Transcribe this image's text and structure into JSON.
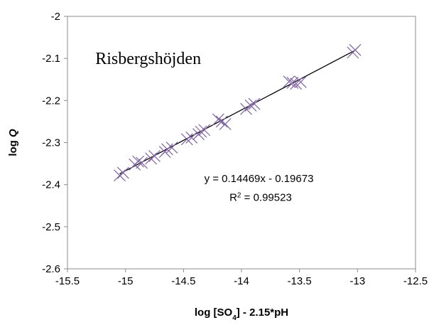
{
  "chart_data": {
    "type": "scatter",
    "title": "",
    "annotation_title": "Risbergshöjden",
    "xlabel": {
      "main": "log [SO",
      "subscript": "4",
      "rest": "] - 2.15*pH"
    },
    "ylabel": {
      "main": "log ",
      "italic": "Q"
    },
    "xlim": [
      -15.5,
      -12.5
    ],
    "ylim": [
      -2.6,
      -2.0
    ],
    "xticks": [
      -15.5,
      -15,
      -14.5,
      -14,
      -13.5,
      -13,
      -12.5
    ],
    "yticks": [
      -2.6,
      -2.5,
      -2.4,
      -2.3,
      -2.2,
      -2.1,
      -2.0
    ],
    "xtick_labels": [
      "-15.5",
      "-15",
      "-14.5",
      "-14",
      "-13.5",
      "-13",
      "-12.5"
    ],
    "ytick_labels": [
      "-2.6",
      "-2.5",
      "-2.4",
      "-2.3",
      "-2.2",
      "-2.1",
      "-2"
    ],
    "grid": false,
    "marker": "x",
    "marker_color": "#8064a2",
    "trendline_color": "#000000",
    "series": [
      {
        "points": [
          [
            -15.05,
            -2.378
          ],
          [
            -15.02,
            -2.372
          ],
          [
            -14.92,
            -2.352
          ],
          [
            -14.89,
            -2.345
          ],
          [
            -14.86,
            -2.348
          ],
          [
            -14.78,
            -2.338
          ],
          [
            -14.75,
            -2.332
          ],
          [
            -14.66,
            -2.322
          ],
          [
            -14.64,
            -2.316
          ],
          [
            -14.6,
            -2.312
          ],
          [
            -14.47,
            -2.292
          ],
          [
            -14.43,
            -2.288
          ],
          [
            -14.37,
            -2.28
          ],
          [
            -14.35,
            -2.274
          ],
          [
            -14.32,
            -2.27
          ],
          [
            -14.2,
            -2.245
          ],
          [
            -14.17,
            -2.25
          ],
          [
            -14.14,
            -2.256
          ],
          [
            -13.96,
            -2.22
          ],
          [
            -13.92,
            -2.212
          ],
          [
            -13.89,
            -2.208
          ],
          [
            -13.59,
            -2.155
          ],
          [
            -13.56,
            -2.158
          ],
          [
            -13.53,
            -2.16
          ],
          [
            -13.49,
            -2.156
          ],
          [
            -13.04,
            -2.086
          ],
          [
            -13.02,
            -2.08
          ]
        ]
      }
    ],
    "trendline": {
      "slope": 0.14469,
      "intercept": -0.19673,
      "x_range": [
        -15.05,
        -13.02
      ],
      "equation_text": "y = 0.14469x - 0.19673",
      "r2_prefix": "R",
      "r2_sup": "2",
      "r2_suffix": " = 0.99523"
    }
  }
}
